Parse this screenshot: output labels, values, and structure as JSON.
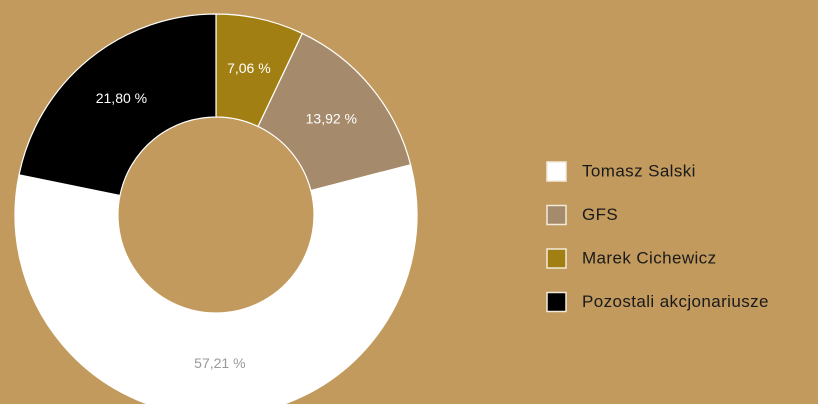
{
  "chart_data": {
    "type": "donut",
    "categories": [
      "Marek Cichewicz",
      "GFS",
      "Tomasz Salski",
      "Pozostali akcjonariusze"
    ],
    "values": [
      7.06,
      13.92,
      57.21,
      21.8
    ],
    "value_labels": [
      "7,06 %",
      "13,92 %",
      "57,21 %",
      "21,80 %"
    ],
    "colors": [
      "#a27f12",
      "#a58b6b",
      "#ffffff",
      "#000000"
    ],
    "legend": "right"
  }
}
